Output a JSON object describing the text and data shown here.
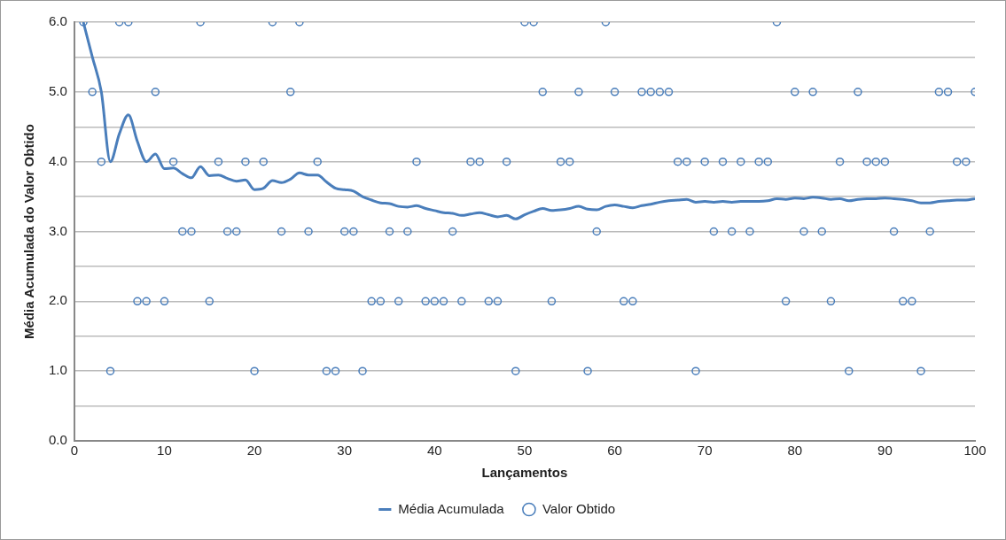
{
  "chart_data": {
    "type": "scatter",
    "xlabel": "Lançamentos",
    "ylabel": "Média Acumulada do Valor Obtido",
    "x": [
      1,
      2,
      3,
      4,
      5,
      6,
      7,
      8,
      9,
      10,
      11,
      12,
      13,
      14,
      15,
      16,
      17,
      18,
      19,
      20,
      21,
      22,
      23,
      24,
      25,
      26,
      27,
      28,
      29,
      30,
      31,
      32,
      33,
      34,
      35,
      36,
      37,
      38,
      39,
      40,
      41,
      42,
      43,
      44,
      45,
      46,
      47,
      48,
      49,
      50,
      51,
      52,
      53,
      54,
      55,
      56,
      57,
      58,
      59,
      60,
      61,
      62,
      63,
      64,
      65,
      66,
      67,
      68,
      69,
      70,
      71,
      72,
      73,
      74,
      75,
      76,
      77,
      78,
      79,
      80,
      81,
      82,
      83,
      84,
      85,
      86,
      87,
      88,
      89,
      90,
      91,
      92,
      93,
      94,
      95,
      96,
      97,
      98,
      99,
      100
    ],
    "series": [
      {
        "name": "Média Acumulada",
        "type": "line",
        "marker": "none",
        "line_style": "solid",
        "color": "#4a7ebb",
        "values": [
          6.0,
          5.5,
          5.0,
          4.0,
          4.4,
          4.67,
          4.29,
          4.0,
          4.11,
          3.9,
          3.91,
          3.83,
          3.77,
          3.93,
          3.8,
          3.81,
          3.76,
          3.72,
          3.74,
          3.6,
          3.62,
          3.73,
          3.7,
          3.75,
          3.84,
          3.81,
          3.81,
          3.71,
          3.62,
          3.6,
          3.58,
          3.5,
          3.45,
          3.41,
          3.4,
          3.36,
          3.35,
          3.37,
          3.33,
          3.3,
          3.27,
          3.26,
          3.23,
          3.25,
          3.27,
          3.24,
          3.21,
          3.23,
          3.18,
          3.24,
          3.29,
          3.33,
          3.3,
          3.31,
          3.33,
          3.36,
          3.32,
          3.31,
          3.36,
          3.38,
          3.36,
          3.34,
          3.37,
          3.39,
          3.42,
          3.44,
          3.45,
          3.46,
          3.42,
          3.43,
          3.42,
          3.43,
          3.42,
          3.43,
          3.43,
          3.43,
          3.44,
          3.47,
          3.46,
          3.48,
          3.47,
          3.49,
          3.48,
          3.46,
          3.47,
          3.44,
          3.46,
          3.47,
          3.47,
          3.48,
          3.47,
          3.46,
          3.44,
          3.41,
          3.41,
          3.43,
          3.44,
          3.45,
          3.45,
          3.47
        ]
      },
      {
        "name": "Valor Obtido",
        "type": "scatter",
        "marker": "circle",
        "color": "#4a7ebb",
        "values": [
          6,
          5,
          4,
          1,
          6,
          6,
          2,
          2,
          5,
          2,
          4,
          3,
          3,
          6,
          2,
          4,
          3,
          3,
          4,
          1,
          4,
          6,
          3,
          5,
          6,
          3,
          4,
          1,
          1,
          3,
          3,
          1,
          2,
          2,
          3,
          2,
          3,
          4,
          2,
          2,
          2,
          3,
          2,
          4,
          4,
          2,
          2,
          4,
          1,
          6,
          6,
          5,
          2,
          4,
          4,
          5,
          1,
          3,
          6,
          5,
          2,
          2,
          5,
          5,
          5,
          5,
          4,
          4,
          1,
          4,
          3,
          4,
          3,
          4,
          3,
          4,
          4,
          6,
          2,
          5,
          3,
          5,
          3,
          2,
          4,
          1,
          5,
          4,
          4,
          4,
          3,
          2,
          2,
          1,
          3,
          5,
          5,
          4,
          4,
          5
        ]
      }
    ],
    "xlim": [
      0,
      100
    ],
    "xticks": [
      0,
      10,
      20,
      30,
      40,
      50,
      60,
      70,
      80,
      90,
      100
    ],
    "ylim": [
      0,
      6
    ],
    "yticks": [
      {
        "value": 0,
        "label": "0.0"
      },
      {
        "value": 0.5,
        "label": null
      },
      {
        "value": 1,
        "label": "1.0"
      },
      {
        "value": 1.5,
        "label": null
      },
      {
        "value": 2,
        "label": "2.0"
      },
      {
        "value": 2.5,
        "label": null
      },
      {
        "value": 3,
        "label": "3.0"
      },
      {
        "value": 3.5,
        "label": null
      },
      {
        "value": 4,
        "label": "4.0"
      },
      {
        "value": 4.5,
        "label": null
      },
      {
        "value": 5,
        "label": "5.0"
      },
      {
        "value": 5.5,
        "label": null
      },
      {
        "value": 6,
        "label": "6.0"
      }
    ],
    "grid": "y",
    "legend": "bottom"
  }
}
